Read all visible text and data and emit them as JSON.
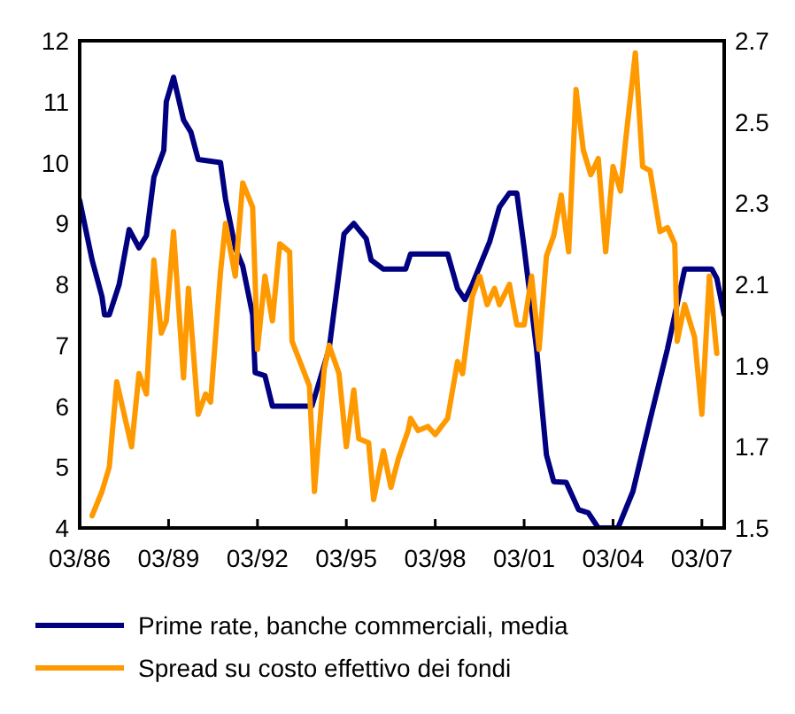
{
  "chart_data": {
    "type": "line",
    "xlim": [
      "1986-03",
      "2007-12"
    ],
    "xticks": [
      {
        "value": "1986-03",
        "label": "03/86"
      },
      {
        "value": "1989-03",
        "label": "03/89"
      },
      {
        "value": "1992-03",
        "label": "03/92"
      },
      {
        "value": "1995-03",
        "label": "03/95"
      },
      {
        "value": "1998-03",
        "label": "03/98"
      },
      {
        "value": "2001-03",
        "label": "03/01"
      },
      {
        "value": "2004-03",
        "label": "03/04"
      },
      {
        "value": "2007-03",
        "label": "03/07"
      }
    ],
    "ylim": [
      4,
      12
    ],
    "yticks": [
      4,
      5,
      6,
      7,
      8,
      9,
      10,
      11,
      12
    ],
    "y2lim": [
      1.5,
      2.7
    ],
    "y2ticks": [
      1.5,
      1.7,
      1.9,
      2.1,
      2.3,
      2.5,
      2.7
    ],
    "grid": false,
    "legend": "bottom",
    "marker": "none",
    "line_style": "solid",
    "series": [
      {
        "name": "Prime rate, banche commerciali, media",
        "color": "#000080",
        "x": [
          "1986-03",
          "1986-08",
          "1986-12",
          "1987-01",
          "1987-03",
          "1987-07",
          "1987-11",
          "1988-03",
          "1988-06",
          "1988-09",
          "1989-01",
          "1989-02",
          "1989-05",
          "1989-09",
          "1989-12",
          "1990-03",
          "1990-12",
          "1991-02",
          "1991-06",
          "1991-09",
          "1992-01",
          "1992-02",
          "1992-06",
          "1992-09",
          "1994-01",
          "1994-08",
          "1995-02",
          "1995-06",
          "1995-11",
          "1996-01",
          "1996-06",
          "1997-03",
          "1997-05",
          "1998-08",
          "1998-12",
          "1999-03",
          "1999-06",
          "2000-01",
          "2000-05",
          "2000-09",
          "2000-12",
          "2001-03",
          "2001-08",
          "2001-12",
          "2002-03",
          "2002-08",
          "2003-01",
          "2003-05",
          "2003-09",
          "2004-05",
          "2004-11",
          "2005-06",
          "2006-01",
          "2006-08",
          "2007-07",
          "2007-09",
          "2007-12"
        ],
        "values": [
          9.38,
          8.4,
          7.8,
          7.5,
          7.5,
          8.0,
          8.9,
          8.6,
          8.8,
          9.76,
          10.2,
          11.0,
          11.4,
          10.7,
          10.5,
          10.05,
          10.0,
          9.4,
          8.6,
          8.3,
          7.5,
          6.55,
          6.5,
          6.0,
          6.0,
          6.94,
          8.83,
          9.0,
          8.75,
          8.4,
          8.25,
          8.25,
          8.5,
          8.5,
          7.93,
          7.75,
          8.0,
          8.7,
          9.27,
          9.5,
          9.5,
          8.6,
          6.94,
          5.2,
          4.76,
          4.75,
          4.3,
          4.25,
          4.0,
          4.0,
          4.6,
          5.78,
          6.94,
          8.25,
          8.25,
          8.1,
          7.5
        ]
      },
      {
        "name": "Spread su costo effettivo dei fondi",
        "color": "#ff9900",
        "axis": "y2",
        "x": [
          "1986-08",
          "1986-12",
          "1987-03",
          "1987-06",
          "1987-12",
          "1988-03",
          "1988-06",
          "1988-09",
          "1988-12",
          "1989-02",
          "1989-05",
          "1989-09",
          "1989-11",
          "1990-03",
          "1990-06",
          "1990-08",
          "1990-12",
          "1991-02",
          "1991-06",
          "1991-09",
          "1992-01",
          "1992-03",
          "1992-06",
          "1992-09",
          "1992-12",
          "1993-04",
          "1993-05",
          "1993-12",
          "1994-02",
          "1994-06",
          "1994-08",
          "1994-12",
          "1995-03",
          "1995-06",
          "1995-08",
          "1995-12",
          "1996-02",
          "1996-06",
          "1996-09",
          "1996-12",
          "1997-04",
          "1997-05",
          "1997-08",
          "1997-12",
          "1998-03",
          "1998-08",
          "1998-12",
          "1999-02",
          "1999-06",
          "1999-09",
          "1999-12",
          "2000-03",
          "2000-05",
          "2000-09",
          "2000-12",
          "2001-03",
          "2001-06",
          "2001-09",
          "2001-12",
          "2002-03",
          "2002-06",
          "2002-09",
          "2002-12",
          "2003-03",
          "2003-06",
          "2003-09",
          "2003-12",
          "2004-03",
          "2004-06",
          "2004-08",
          "2004-12",
          "2005-03",
          "2005-06",
          "2005-10",
          "2006-01",
          "2006-04",
          "2006-05",
          "2006-08",
          "2006-12",
          "2007-03",
          "2007-06",
          "2007-09"
        ],
        "values": [
          1.53,
          1.59,
          1.65,
          1.86,
          1.7,
          1.88,
          1.83,
          2.16,
          1.98,
          2.01,
          2.23,
          1.87,
          2.09,
          1.78,
          1.83,
          1.81,
          2.13,
          2.25,
          2.12,
          2.35,
          2.29,
          1.94,
          2.12,
          2.01,
          2.2,
          2.18,
          1.96,
          1.85,
          1.59,
          1.89,
          1.95,
          1.88,
          1.7,
          1.84,
          1.72,
          1.71,
          1.57,
          1.69,
          1.6,
          1.67,
          1.74,
          1.77,
          1.74,
          1.75,
          1.73,
          1.77,
          1.91,
          1.88,
          2.07,
          2.12,
          2.05,
          2.09,
          2.05,
          2.1,
          2.0,
          2.0,
          2.12,
          1.94,
          2.17,
          2.22,
          2.32,
          2.18,
          2.58,
          2.43,
          2.37,
          2.41,
          2.18,
          2.39,
          2.33,
          2.45,
          2.67,
          2.39,
          2.38,
          2.23,
          2.24,
          2.2,
          1.96,
          2.05,
          1.97,
          1.78,
          2.12,
          1.93
        ]
      }
    ]
  }
}
